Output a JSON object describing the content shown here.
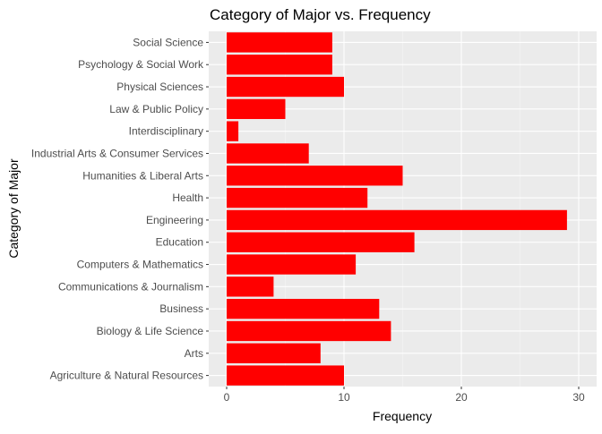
{
  "chart_data": {
    "type": "bar",
    "orientation": "horizontal",
    "title": "Category of Major vs. Frequency",
    "xlabel": "Frequency",
    "ylabel": "Category of Major",
    "categories": [
      "Agriculture & Natural Resources",
      "Arts",
      "Biology & Life Science",
      "Business",
      "Communications & Journalism",
      "Computers & Mathematics",
      "Education",
      "Engineering",
      "Health",
      "Humanities & Liberal Arts",
      "Industrial Arts & Consumer Services",
      "Interdisciplinary",
      "Law & Public Policy",
      "Physical Sciences",
      "Psychology & Social Work",
      "Social Science"
    ],
    "values": [
      10,
      8,
      14,
      13,
      4,
      11,
      16,
      29,
      12,
      15,
      7,
      1,
      5,
      10,
      9,
      9
    ],
    "xlim": [
      0,
      30
    ],
    "xticks": [
      0,
      10,
      20,
      30
    ],
    "xtick_labels": [
      "0",
      "10",
      "20",
      "30"
    ],
    "grid": true,
    "legend": "none",
    "colors": {
      "bar": "#ff0000",
      "panel_background": "#ebebeb",
      "grid_major": "#ffffff",
      "grid_minor": "#f5f5f5",
      "tick_text": "#4d4d4d",
      "tick_mark": "#333333",
      "title_text": "#000000"
    }
  }
}
